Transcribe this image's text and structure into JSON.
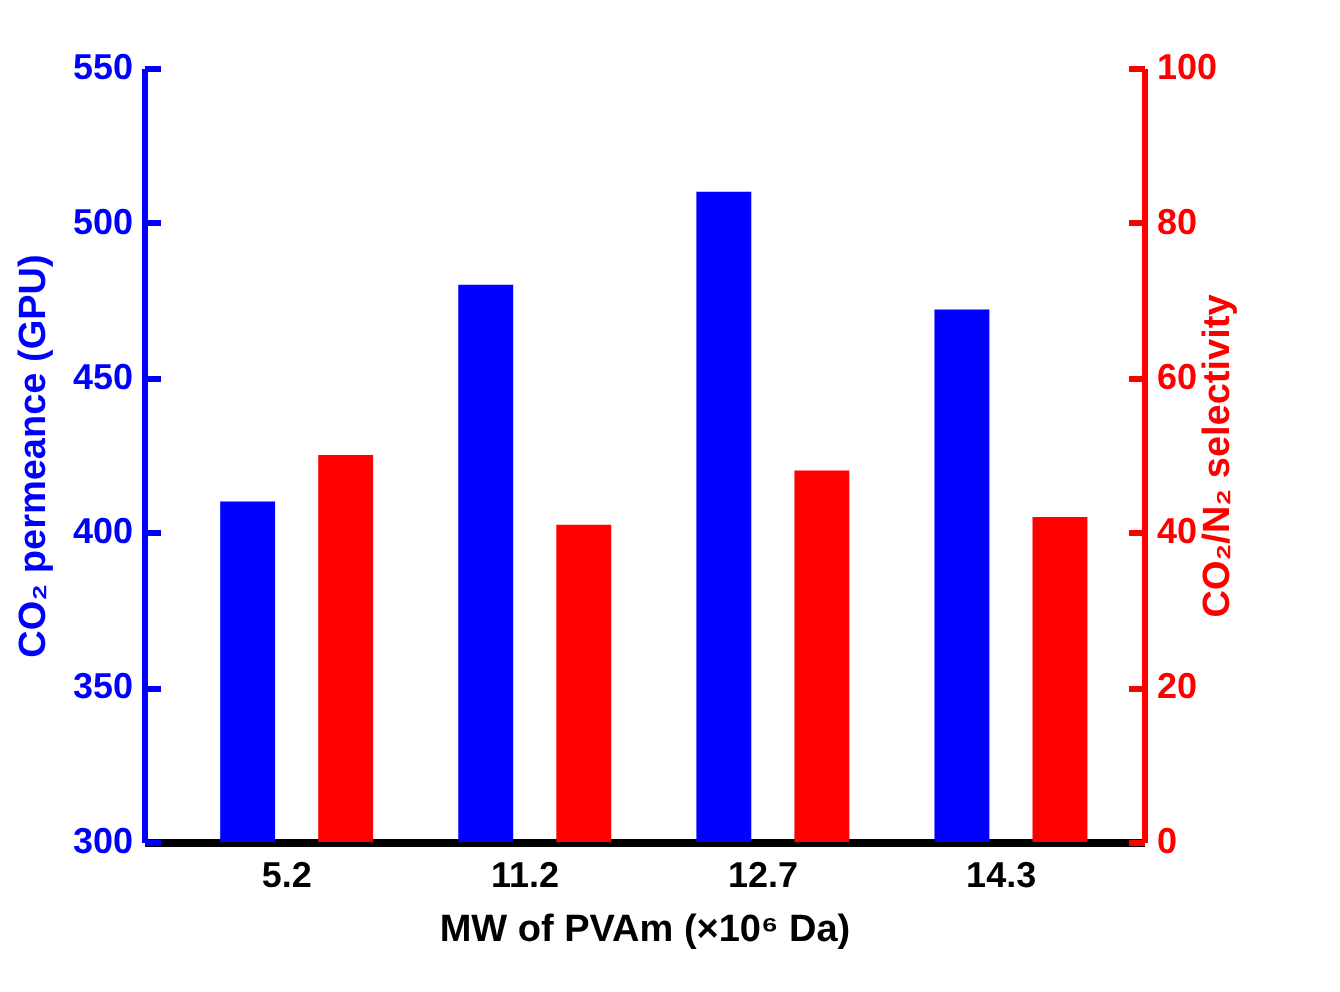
{
  "chart_data": {
    "type": "bar",
    "xlabel": "MW of PVAm (×10⁶ Da)",
    "ylabel": "CO₂ permeance (GPU)",
    "y2label": "CO₂/N₂ selectivity",
    "categories": [
      "5.2",
      "11.2",
      "12.7",
      "14.3"
    ],
    "series": [
      {
        "color": "#0000ff",
        "values": [
          410,
          480,
          510,
          472
        ]
      },
      {
        "color": "#ff0000",
        "axis": "y2",
        "values": [
          50,
          41,
          48,
          42
        ]
      }
    ],
    "ylim": [
      300,
      550
    ],
    "yticks": [
      300,
      350,
      400,
      450,
      500,
      550
    ],
    "y2lim": [
      0,
      100
    ],
    "y2ticks": [
      0,
      20,
      40,
      60,
      80,
      100
    ],
    "grid": false
  }
}
